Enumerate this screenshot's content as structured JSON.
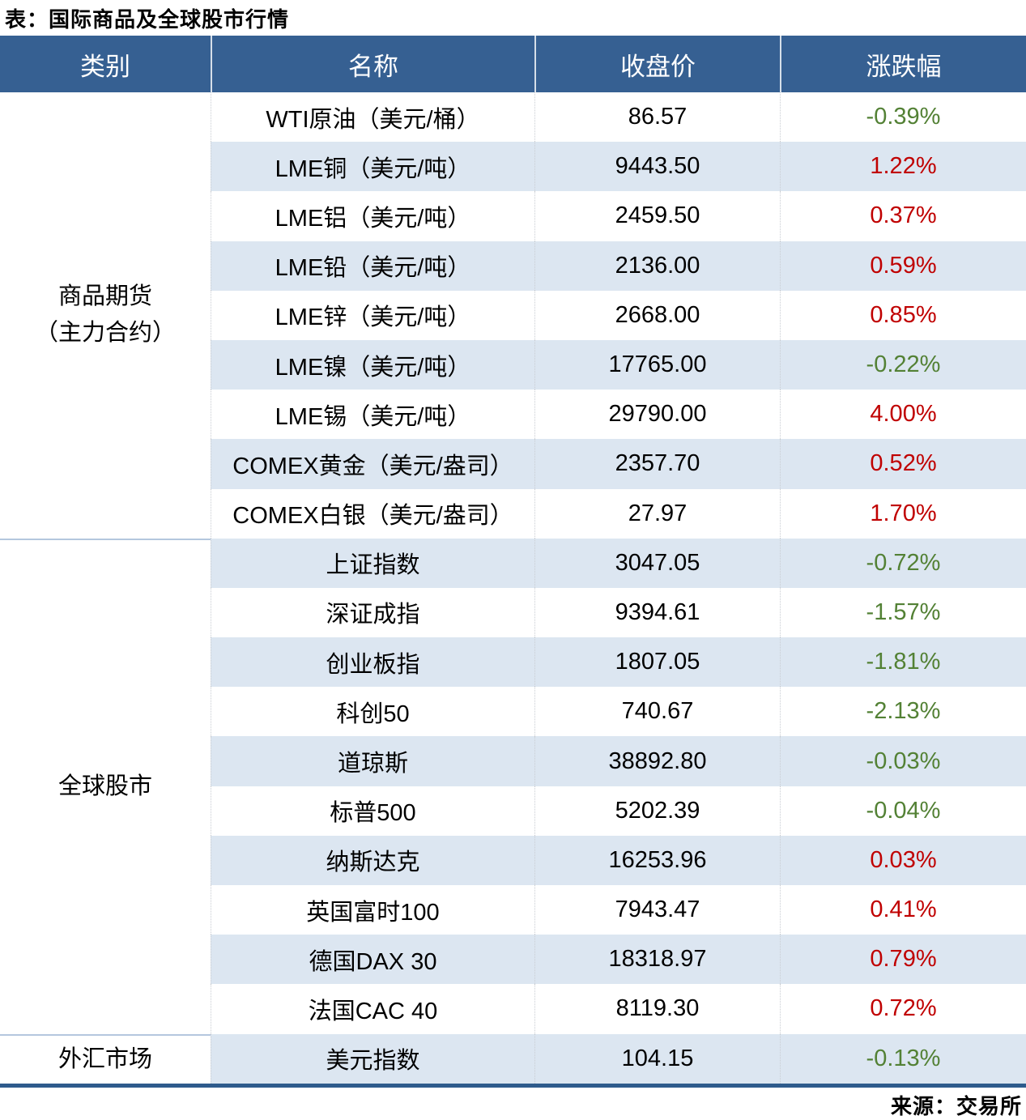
{
  "title": "表：国际商品及全球股市行情",
  "source": "来源：交易所",
  "colors": {
    "header_bg": "#366092",
    "header_text": "#FFFFFF",
    "stripe": "#DCE6F1",
    "up": "#C00000",
    "down": "#538135",
    "bottom_border": "#2E5B8C",
    "section_divider": "#B4C7DE"
  },
  "table": {
    "columns": [
      {
        "key": "category",
        "label": "类别"
      },
      {
        "key": "name",
        "label": "名称"
      },
      {
        "key": "close",
        "label": "收盘价"
      },
      {
        "key": "change",
        "label": "涨跌幅"
      }
    ],
    "sections": [
      {
        "key": "commodity-futures",
        "category": "商品期货\n（主力合约）",
        "rows": [
          {
            "name": "WTI原油（美元/桶）",
            "close": "86.57",
            "change": "-0.39%"
          },
          {
            "name": "LME铜（美元/吨）",
            "close": "9443.50",
            "change": "1.22%"
          },
          {
            "name": "LME铝（美元/吨）",
            "close": "2459.50",
            "change": "0.37%"
          },
          {
            "name": "LME铅（美元/吨）",
            "close": "2136.00",
            "change": "0.59%"
          },
          {
            "name": "LME锌（美元/吨）",
            "close": "2668.00",
            "change": "0.85%"
          },
          {
            "name": "LME镍（美元/吨）",
            "close": "17765.00",
            "change": "-0.22%"
          },
          {
            "name": "LME锡（美元/吨）",
            "close": "29790.00",
            "change": "4.00%"
          },
          {
            "name": "COMEX黄金（美元/盎司）",
            "close": "2357.70",
            "change": "0.52%"
          },
          {
            "name": "COMEX白银（美元/盎司）",
            "close": "27.97",
            "change": "1.70%"
          }
        ]
      },
      {
        "key": "global-stocks",
        "category": "全球股市",
        "rows": [
          {
            "name": "上证指数",
            "close": "3047.05",
            "change": "-0.72%"
          },
          {
            "name": "深证成指",
            "close": "9394.61",
            "change": "-1.57%"
          },
          {
            "name": "创业板指",
            "close": "1807.05",
            "change": "-1.81%"
          },
          {
            "name": "科创50",
            "close": "740.67",
            "change": "-2.13%"
          },
          {
            "name": "道琼斯",
            "close": "38892.80",
            "change": "-0.03%"
          },
          {
            "name": "标普500",
            "close": "5202.39",
            "change": "-0.04%"
          },
          {
            "name": "纳斯达克",
            "close": "16253.96",
            "change": "0.03%"
          },
          {
            "name": "英国富时100",
            "close": "7943.47",
            "change": "0.41%"
          },
          {
            "name": "德国DAX 30",
            "close": "18318.97",
            "change": "0.79%"
          },
          {
            "name": "法国CAC 40",
            "close": "8119.30",
            "change": "0.72%"
          }
        ]
      },
      {
        "key": "forex-market",
        "category": "外汇市场",
        "rows": [
          {
            "name": "美元指数",
            "close": "104.15",
            "change": "-0.13%"
          }
        ]
      }
    ]
  },
  "chart_data": {
    "type": "table",
    "title": "表：国际商品及全球股市行情",
    "columns": [
      "类别",
      "名称",
      "收盘价",
      "涨跌幅"
    ],
    "rows": [
      [
        "商品期货（主力合约）",
        "WTI原油（美元/桶）",
        "86.57",
        "-0.39%"
      ],
      [
        "商品期货（主力合约）",
        "LME铜（美元/吨）",
        "9443.50",
        "1.22%"
      ],
      [
        "商品期货（主力合约）",
        "LME铝（美元/吨）",
        "2459.50",
        "0.37%"
      ],
      [
        "商品期货（主力合约）",
        "LME铅（美元/吨）",
        "2136.00",
        "0.59%"
      ],
      [
        "商品期货（主力合约）",
        "LME锌（美元/吨）",
        "2668.00",
        "0.85%"
      ],
      [
        "商品期货（主力合约）",
        "LME镍（美元/吨）",
        "17765.00",
        "-0.22%"
      ],
      [
        "商品期货（主力合约）",
        "LME锡（美元/吨）",
        "29790.00",
        "4.00%"
      ],
      [
        "商品期货（主力合约）",
        "COMEX黄金（美元/盎司）",
        "2357.70",
        "0.52%"
      ],
      [
        "商品期货（主力合约）",
        "COMEX白银（美元/盎司）",
        "27.97",
        "1.70%"
      ],
      [
        "全球股市",
        "上证指数",
        "3047.05",
        "-0.72%"
      ],
      [
        "全球股市",
        "深证成指",
        "9394.61",
        "-1.57%"
      ],
      [
        "全球股市",
        "创业板指",
        "1807.05",
        "-1.81%"
      ],
      [
        "全球股市",
        "科创50",
        "740.67",
        "-2.13%"
      ],
      [
        "全球股市",
        "道琼斯",
        "38892.80",
        "-0.03%"
      ],
      [
        "全球股市",
        "标普500",
        "5202.39",
        "-0.04%"
      ],
      [
        "全球股市",
        "纳斯达克",
        "16253.96",
        "0.03%"
      ],
      [
        "全球股市",
        "英国富时100",
        "7943.47",
        "0.41%"
      ],
      [
        "全球股市",
        "德国DAX 30",
        "18318.97",
        "0.79%"
      ],
      [
        "全球股市",
        "法国CAC 40",
        "8119.30",
        "0.72%"
      ],
      [
        "外汇市场",
        "美元指数",
        "104.15",
        "-0.13%"
      ]
    ],
    "source": "来源：交易所"
  }
}
